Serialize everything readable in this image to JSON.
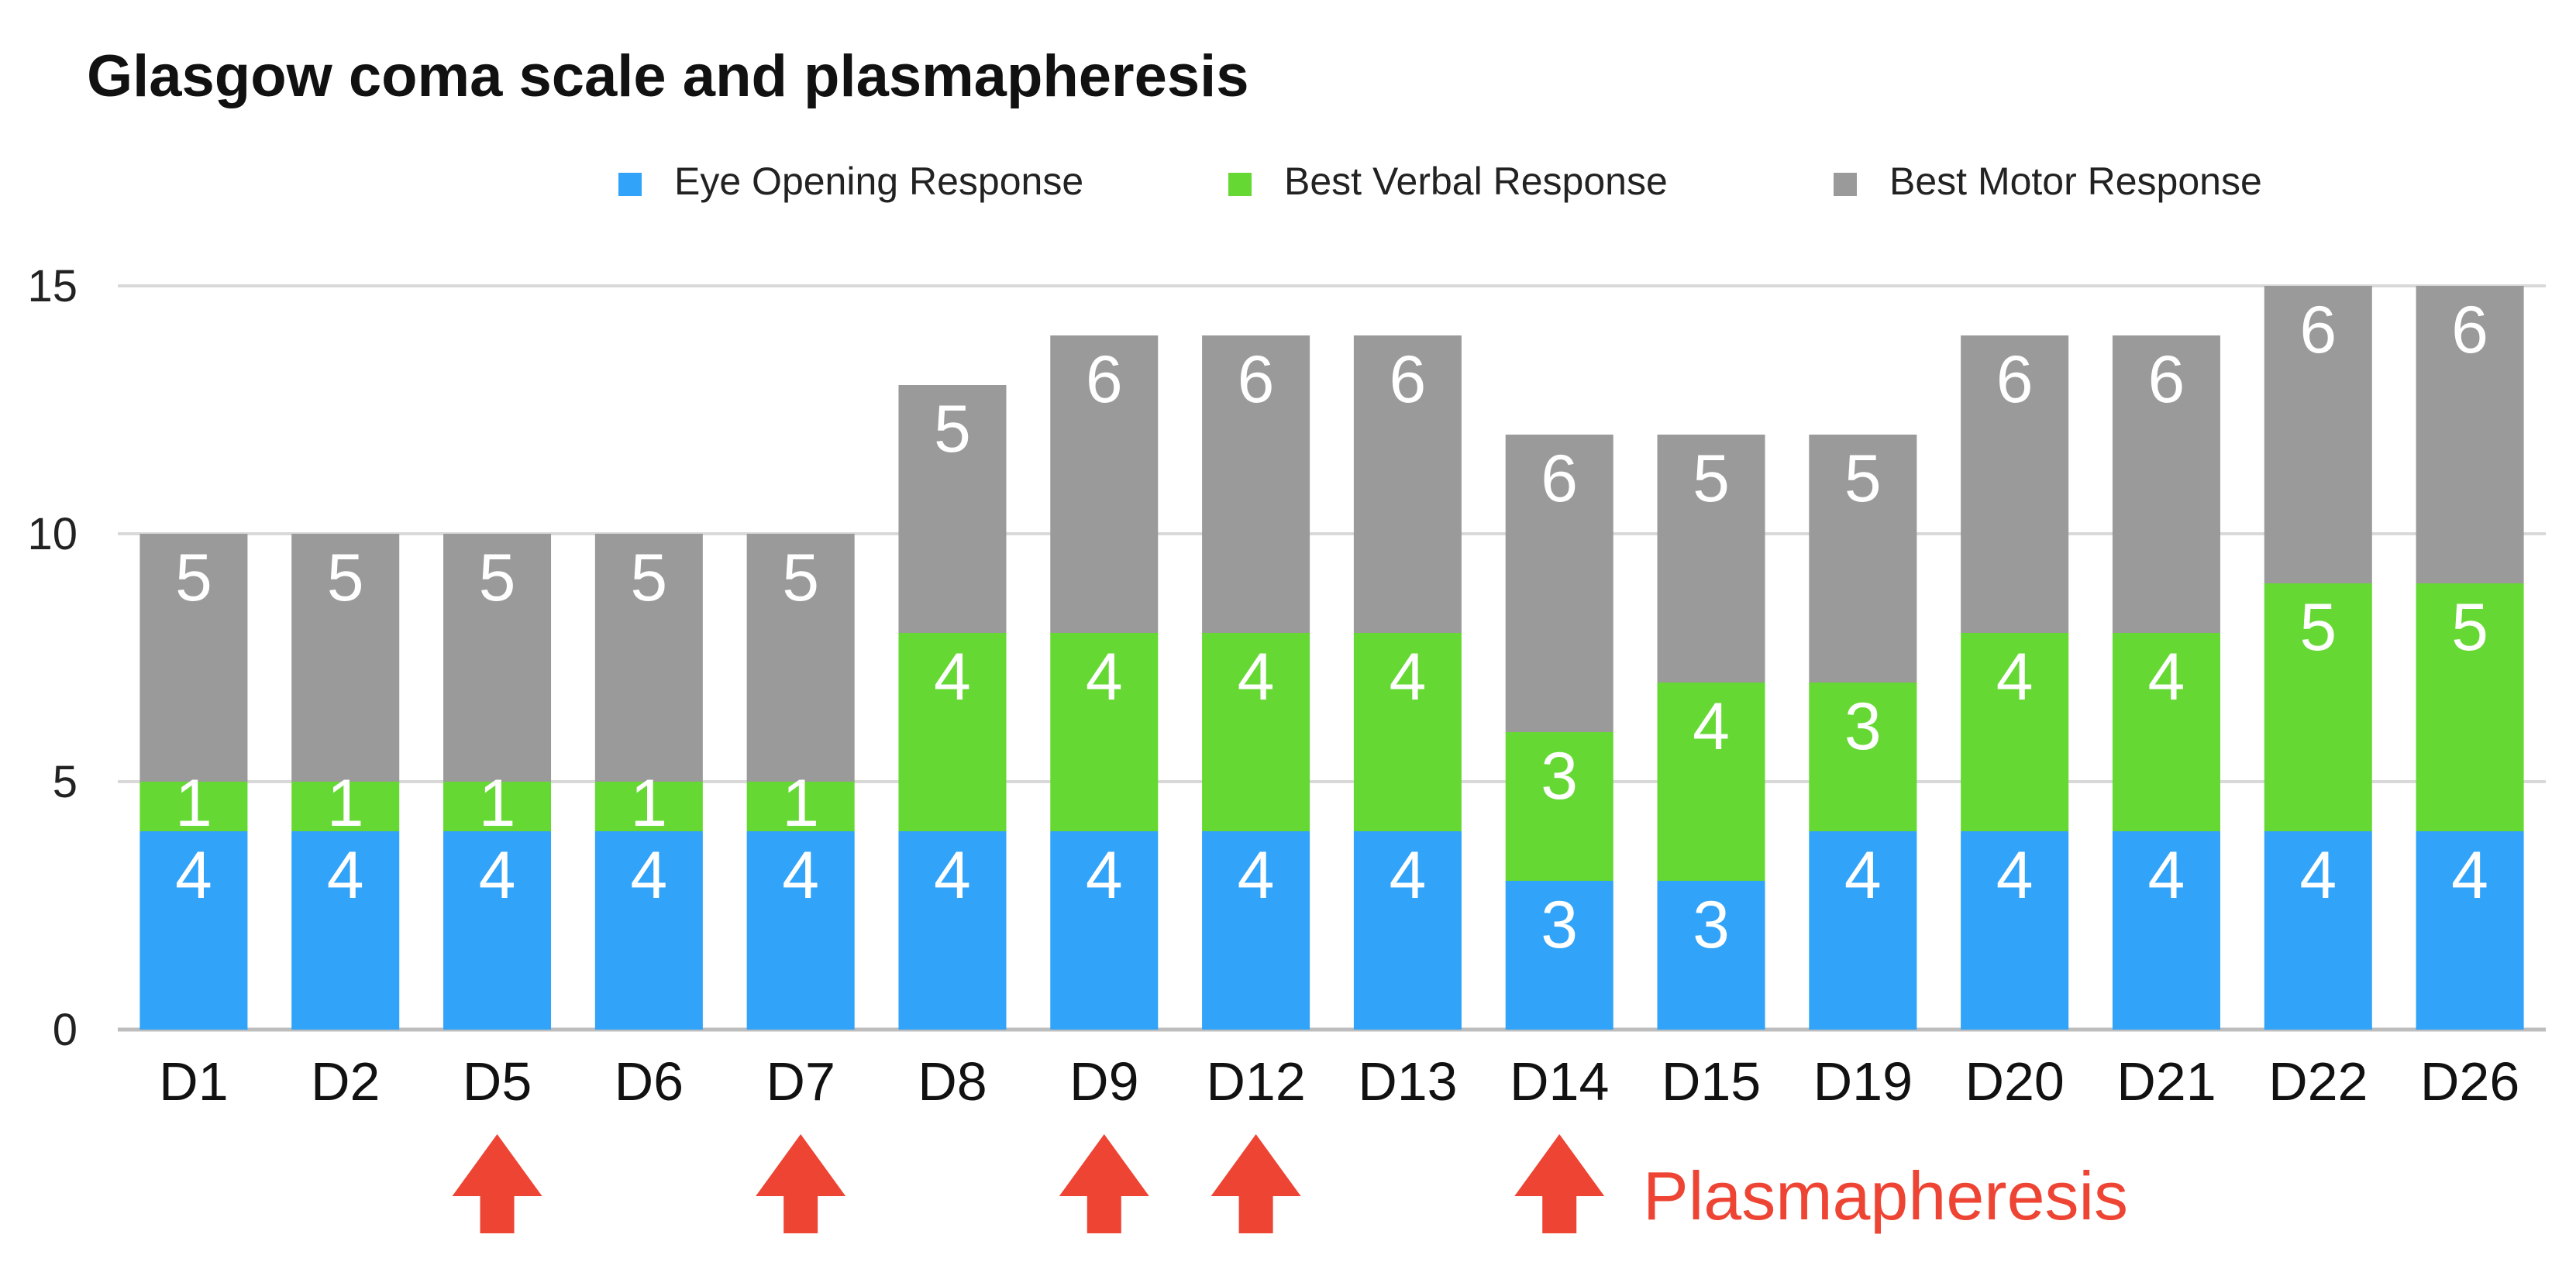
{
  "chart_data": {
    "type": "bar",
    "stacked": true,
    "title": "Glasgow coma scale and plasmapheresis",
    "xlabel": "",
    "ylabel": "",
    "ylim": [
      0,
      15
    ],
    "yticks": [
      0,
      5,
      10,
      15
    ],
    "grid": true,
    "legend_position": "top",
    "categories": [
      "D1",
      "D2",
      "D5",
      "D6",
      "D7",
      "D8",
      "D9",
      "D12",
      "D13",
      "D14",
      "D15",
      "D19",
      "D20",
      "D21",
      "D22",
      "D26"
    ],
    "series": [
      {
        "name": "Eye Opening Response",
        "color": "#31A3F8",
        "values": [
          4,
          4,
          4,
          4,
          4,
          4,
          4,
          4,
          4,
          3,
          3,
          4,
          4,
          4,
          4,
          4
        ]
      },
      {
        "name": "Best Verbal Response",
        "color": "#66D834",
        "values": [
          1,
          1,
          1,
          1,
          1,
          4,
          4,
          4,
          4,
          3,
          4,
          3,
          4,
          4,
          5,
          5
        ]
      },
      {
        "name": "Best Motor Response",
        "color": "#9A9A9A",
        "values": [
          5,
          5,
          5,
          5,
          5,
          5,
          6,
          6,
          6,
          6,
          5,
          5,
          6,
          6,
          6,
          6
        ]
      }
    ],
    "annotations": {
      "label": "Plasmapheresis",
      "color": "#EE4434",
      "arrow_categories": [
        "D5",
        "D7",
        "D9",
        "D12",
        "D14"
      ]
    }
  }
}
